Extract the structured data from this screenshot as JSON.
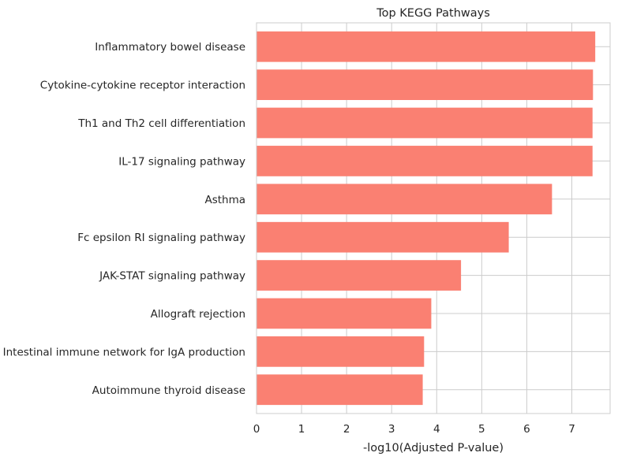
{
  "chart_data": {
    "type": "bar",
    "orientation": "horizontal",
    "title": "Top KEGG Pathways",
    "xlabel": "-log10(Adjusted P-value)",
    "ylabel": "",
    "xlim": [
      0,
      7.85
    ],
    "xticks": [
      0,
      1,
      2,
      3,
      4,
      5,
      6,
      7
    ],
    "grid": true,
    "bar_color": "#FA8072",
    "categories": [
      "Inflammatory bowel disease",
      "Cytokine-cytokine receptor interaction",
      "Th1 and Th2 cell differentiation",
      "IL-17 signaling pathway",
      "Asthma",
      "Fc epsilon RI signaling pathway",
      "JAK-STAT signaling pathway",
      "Allograft rejection",
      "Intestinal immune network for IgA production",
      "Autoimmune thyroid disease"
    ],
    "values": [
      7.52,
      7.47,
      7.46,
      7.46,
      6.56,
      5.6,
      4.54,
      3.88,
      3.72,
      3.69
    ]
  }
}
